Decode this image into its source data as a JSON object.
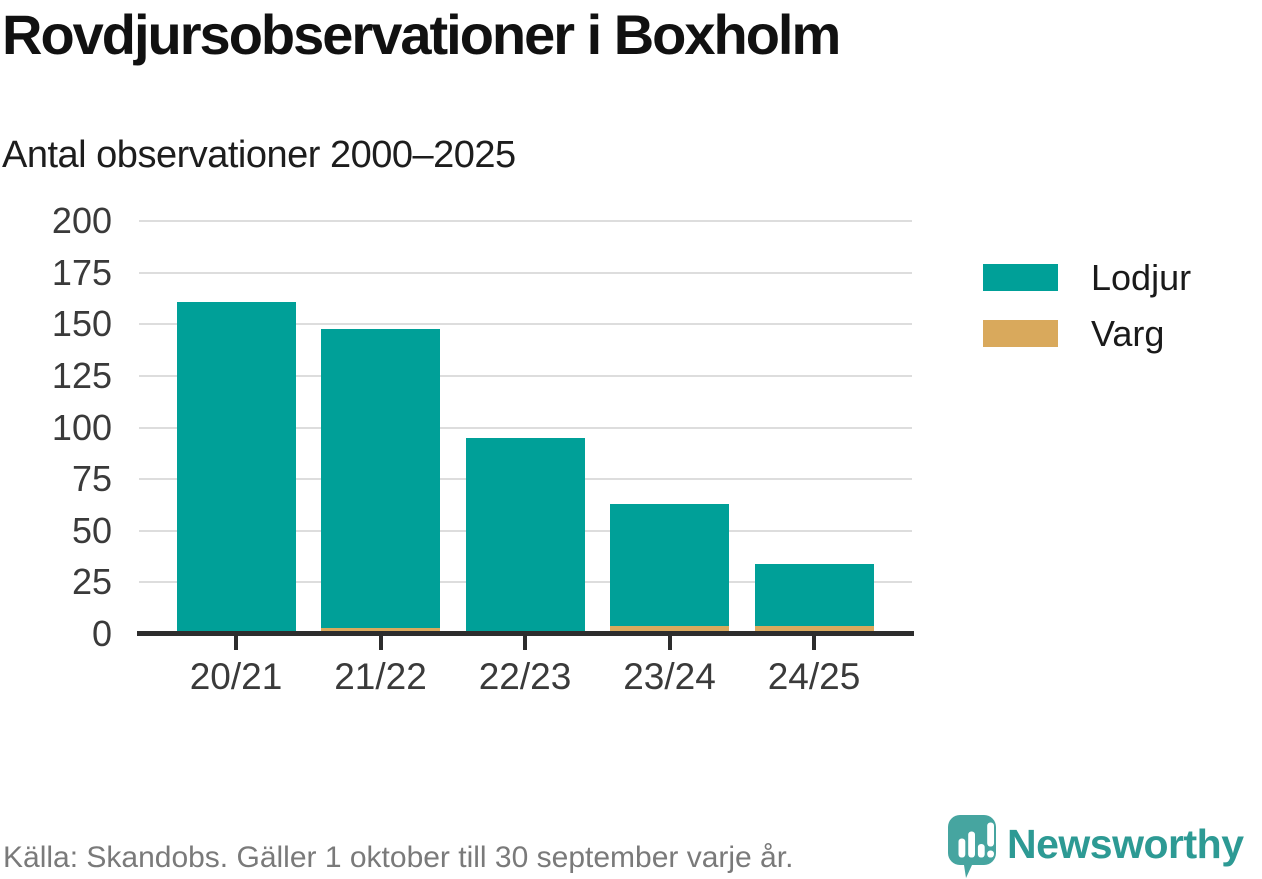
{
  "header": {
    "title": "Rovdjursobservationer i Boxholm",
    "subtitle": "Antal observationer 2000–2025"
  },
  "chart_data": {
    "type": "bar",
    "stacked": true,
    "categories": [
      "20/21",
      "21/22",
      "22/23",
      "23/24",
      "24/25"
    ],
    "series": [
      {
        "name": "Lodjur",
        "color": "#00a098",
        "values": [
          161,
          145,
          95,
          59,
          30
        ]
      },
      {
        "name": "Varg",
        "color": "#d9a95c",
        "values": [
          0,
          3,
          0,
          4,
          4
        ]
      }
    ],
    "stack_totals": [
      161,
      148,
      95,
      63,
      34
    ],
    "title": "Rovdjursobservationer i Boxholm",
    "subtitle": "Antal observationer 2000–2025",
    "xlabel": "",
    "ylabel": "",
    "ylim": [
      0,
      200
    ],
    "yticks": [
      0,
      25,
      50,
      75,
      100,
      125,
      150,
      175,
      200
    ],
    "grid": true,
    "legend_position": "right"
  },
  "footer": {
    "source": "Källa: Skandobs. Gäller 1 oktober till 30 september varje år.",
    "brand_name": "Newsworthy"
  },
  "colors": {
    "lodjur": "#00a098",
    "varg": "#d9a95c",
    "axis": "#2d2d2d",
    "gridline": "#dddddd",
    "brand_teal": "#2d9a94",
    "logo_bubble": "#46a5a0"
  }
}
